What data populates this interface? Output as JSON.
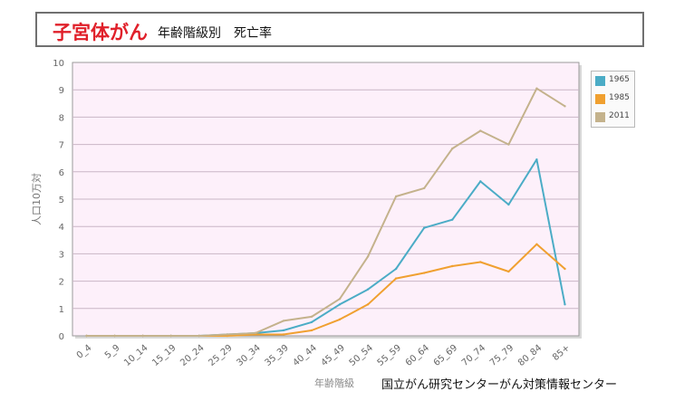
{
  "header": {
    "title": "子宮体がん",
    "subtitle": "年齢階級別　死亡率"
  },
  "credit": "国立がん研究センターがん対策情報センター",
  "colors": {
    "title": "#e0202a",
    "plot_background": "#fdf0fa",
    "grid": "#c9b6c6"
  },
  "chart_data": {
    "type": "line",
    "xlabel": "年齢階級",
    "ylabel": "人口10万対",
    "ylim": [
      0,
      10
    ],
    "yticks": [
      "0",
      "1",
      "2",
      "3",
      "4",
      "5",
      "6",
      "7",
      "8",
      "9",
      "10"
    ],
    "grid": true,
    "legend_position": "right",
    "categories": [
      "0_4",
      "5_9",
      "10_14",
      "15_19",
      "20_24",
      "25_29",
      "30_34",
      "35_39",
      "40_44",
      "45_49",
      "50_54",
      "55_59",
      "60_64",
      "65_69",
      "70_74",
      "75_79",
      "80_84",
      "85+"
    ],
    "series": [
      {
        "name": "1965",
        "color": "#4bacc6",
        "values": [
          0,
          0,
          0,
          0,
          0,
          0.05,
          0.1,
          0.2,
          0.5,
          1.15,
          1.7,
          2.45,
          3.95,
          4.25,
          5.65,
          4.8,
          6.45,
          1.15
        ]
      },
      {
        "name": "1985",
        "color": "#f0a030",
        "values": [
          0,
          0,
          0,
          0,
          0,
          0,
          0.05,
          0.05,
          0.2,
          0.6,
          1.15,
          2.1,
          2.3,
          2.55,
          2.7,
          2.35,
          3.35,
          2.45
        ]
      },
      {
        "name": "2011",
        "color": "#c4b28c",
        "values": [
          0,
          0,
          0,
          0,
          0,
          0.05,
          0.1,
          0.55,
          0.7,
          1.35,
          2.9,
          5.1,
          5.4,
          6.85,
          7.5,
          7.0,
          9.05,
          8.4
        ]
      }
    ]
  }
}
